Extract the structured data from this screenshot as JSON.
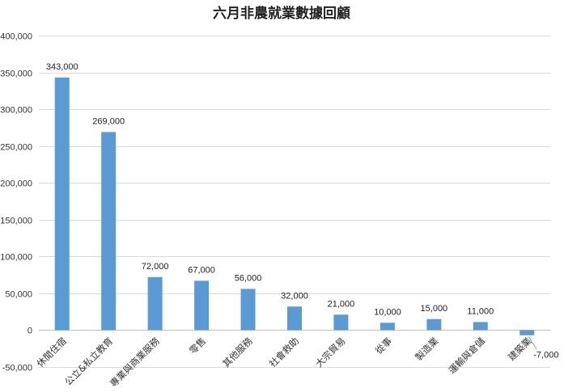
{
  "chart_data": {
    "type": "bar",
    "title": "六月非農就業數據回顧",
    "xlabel": "",
    "ylabel": "",
    "ylim": [
      -50000,
      400000
    ],
    "yticks": [
      -50000,
      0,
      50000,
      100000,
      150000,
      200000,
      250000,
      300000,
      350000,
      400000
    ],
    "ytick_labels": [
      "-50,000",
      "0",
      "50,000",
      "100,000",
      "150,000",
      "200,000",
      "250,000",
      "300,000",
      "350,000",
      "400,000"
    ],
    "categories": [
      "休閒住宿",
      "公立&私立教育",
      "專業與商業服務",
      "零售",
      "其他服務",
      "社會救助",
      "大宗貿易",
      "從事",
      "製造業",
      "運輸與倉儲",
      "建築業"
    ],
    "values": [
      343000,
      269000,
      72000,
      67000,
      56000,
      32000,
      21000,
      10000,
      15000,
      11000,
      -7000
    ],
    "value_labels": [
      "343,000",
      "269,000",
      "72,000",
      "67,000",
      "56,000",
      "32,000",
      "21,000",
      "10,000",
      "15,000",
      "11,000",
      "-7,000"
    ],
    "grid": true,
    "legend": "none",
    "bar_color": "#5B9BD5",
    "grid_color": "#d9d9d9"
  }
}
